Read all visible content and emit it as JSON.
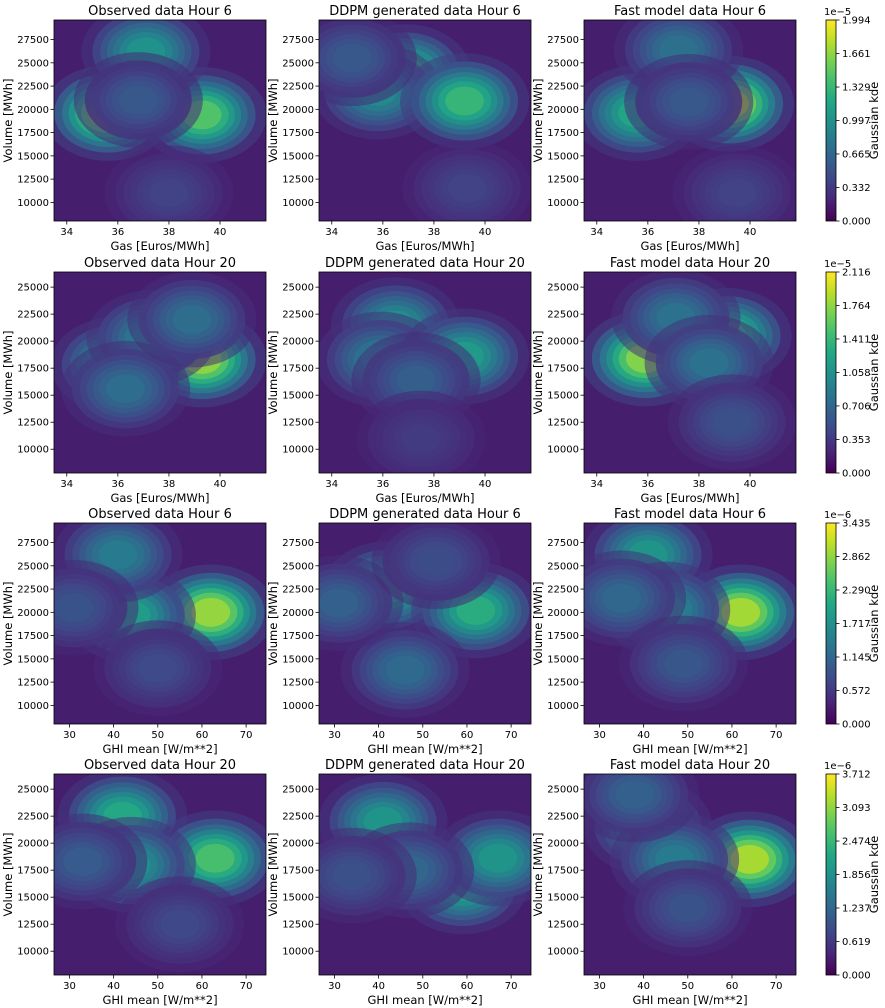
{
  "chart_data": [
    {
      "type": "heatmap",
      "rows": [
        {
          "xlabel": "Gas [Euros/MWh]",
          "ylabel": "Volume [MWh]",
          "xticks": [
            "34",
            "36",
            "38",
            "40"
          ],
          "yticks": [
            "10000",
            "12500",
            "15000",
            "17500",
            "20000",
            "22500",
            "25000",
            "27500"
          ],
          "colorbar": {
            "label": "Gaussian kde",
            "exponent": "1e−5",
            "ticks": [
              "0.000",
              "0.332",
              "0.665",
              "0.997",
              "1.329",
              "1.661",
              "1.994"
            ]
          },
          "panels": [
            {
              "title": "Observed data Hour 6",
              "peaks": [
                {
                  "x": 35.6,
                  "y": 19600,
                  "v": 1.85
                },
                {
                  "x": 39.3,
                  "y": 19400,
                  "v": 1.6
                },
                {
                  "x": 37.1,
                  "y": 26200,
                  "v": 1.05
                },
                {
                  "x": 36.8,
                  "y": 21000,
                  "v": 0.45
                },
                {
                  "x": 38.0,
                  "y": 11000,
                  "v": 0.25
                }
              ]
            },
            {
              "title": "DDPM generated data Hour 6",
              "peaks": [
                {
                  "x": 36.9,
                  "y": 24000,
                  "v": 1.35
                },
                {
                  "x": 35.8,
                  "y": 21900,
                  "v": 0.95
                },
                {
                  "x": 39.2,
                  "y": 20900,
                  "v": 1.45
                },
                {
                  "x": 34.8,
                  "y": 25500,
                  "v": 0.45
                },
                {
                  "x": 39.3,
                  "y": 11500,
                  "v": 0.25
                }
              ]
            },
            {
              "title": "Fast model data Hour 6",
              "peaks": [
                {
                  "x": 39.2,
                  "y": 20600,
                  "v": 1.99
                },
                {
                  "x": 35.6,
                  "y": 19600,
                  "v": 1.25
                },
                {
                  "x": 37.2,
                  "y": 26400,
                  "v": 0.7
                },
                {
                  "x": 37.6,
                  "y": 20800,
                  "v": 0.45
                },
                {
                  "x": 39.5,
                  "y": 11000,
                  "v": 0.25
                }
              ]
            }
          ]
        },
        {
          "xlabel": "Gas [Euros/MWh]",
          "ylabel": "Volume [MWh]",
          "xticks": [
            "34",
            "36",
            "38",
            "40"
          ],
          "yticks": [
            "10000",
            "12500",
            "15000",
            "17500",
            "20000",
            "22500",
            "25000"
          ],
          "colorbar": {
            "label": "Gaussian kde",
            "exponent": "1e−5",
            "ticks": [
              "0.000",
              "0.353",
              "0.706",
              "1.058",
              "1.411",
              "1.764",
              "2.116"
            ]
          },
          "panels": [
            {
              "title": "Observed data Hour 20",
              "peaks": [
                {
                  "x": 39.3,
                  "y": 18300,
                  "v": 2.0
                },
                {
                  "x": 35.9,
                  "y": 17800,
                  "v": 1.15
                },
                {
                  "x": 37.3,
                  "y": 20300,
                  "v": 0.9
                },
                {
                  "x": 36.3,
                  "y": 15600,
                  "v": 0.7
                },
                {
                  "x": 38.9,
                  "y": 22000,
                  "v": 0.7
                }
              ]
            },
            {
              "title": "DDPM generated data Hour 20",
              "peaks": [
                {
                  "x": 36.5,
                  "y": 21500,
                  "v": 1.05
                },
                {
                  "x": 35.9,
                  "y": 18300,
                  "v": 0.85
                },
                {
                  "x": 39.2,
                  "y": 18600,
                  "v": 1.2
                },
                {
                  "x": 37.3,
                  "y": 16400,
                  "v": 0.55
                },
                {
                  "x": 37.5,
                  "y": 11000,
                  "v": 0.2
                }
              ]
            },
            {
              "title": "Fast model data Hour 20",
              "peaks": [
                {
                  "x": 35.9,
                  "y": 18400,
                  "v": 1.95
                },
                {
                  "x": 39.1,
                  "y": 20500,
                  "v": 1.55
                },
                {
                  "x": 37.1,
                  "y": 22200,
                  "v": 0.75
                },
                {
                  "x": 38.4,
                  "y": 18000,
                  "v": 0.75
                },
                {
                  "x": 39.3,
                  "y": 12500,
                  "v": 0.4
                }
              ]
            }
          ]
        },
        {
          "xlabel": "GHI mean [W/m**2]",
          "ylabel": "Volume [MWh]",
          "xticks": [
            "30",
            "40",
            "50",
            "60",
            "70"
          ],
          "yticks": [
            "10000",
            "12500",
            "15000",
            "17500",
            "20000",
            "22500",
            "25000",
            "27500"
          ],
          "colorbar": {
            "label": "Gaussian kde",
            "exponent": "1e−6",
            "ticks": [
              "0.000",
              "0.572",
              "1.145",
              "1.717",
              "2.290",
              "2.862",
              "3.435"
            ]
          },
          "panels": [
            {
              "title": "Observed data Hour 6",
              "peaks": [
                {
                  "x": 62,
                  "y": 20000,
                  "v": 3.3
                },
                {
                  "x": 44,
                  "y": 19700,
                  "v": 2.0
                },
                {
                  "x": 41,
                  "y": 26200,
                  "v": 1.4
                },
                {
                  "x": 31,
                  "y": 20500,
                  "v": 0.7
                },
                {
                  "x": 50,
                  "y": 14000,
                  "v": 0.55
                }
              ]
            },
            {
              "title": "DDPM generated data Hour 6",
              "peaks": [
                {
                  "x": 42,
                  "y": 22500,
                  "v": 2.1
                },
                {
                  "x": 62,
                  "y": 20200,
                  "v": 2.3
                },
                {
                  "x": 46,
                  "y": 13800,
                  "v": 1.1
                },
                {
                  "x": 31,
                  "y": 21000,
                  "v": 0.9
                },
                {
                  "x": 53,
                  "y": 25500,
                  "v": 0.6
                }
              ]
            },
            {
              "title": "Fast model data Hour 6",
              "peaks": [
                {
                  "x": 62,
                  "y": 20000,
                  "v": 3.4
                },
                {
                  "x": 41,
                  "y": 26200,
                  "v": 1.85
                },
                {
                  "x": 45,
                  "y": 20300,
                  "v": 1.65
                },
                {
                  "x": 35,
                  "y": 21500,
                  "v": 1.05
                },
                {
                  "x": 49,
                  "y": 14500,
                  "v": 0.75
                }
              ]
            }
          ]
        },
        {
          "xlabel": "GHI mean [W/m**2]",
          "ylabel": "Volume [MWh]",
          "xticks": [
            "30",
            "40",
            "50",
            "60",
            "70"
          ],
          "yticks": [
            "10000",
            "12500",
            "15000",
            "17500",
            "20000",
            "22500",
            "25000"
          ],
          "colorbar": {
            "label": "Gaussian kde",
            "exponent": "1e−6",
            "ticks": [
              "0.000",
              "0.619",
              "1.237",
              "1.856",
              "2.474",
              "3.093",
              "3.712"
            ]
          },
          "panels": [
            {
              "title": "Observed data Hour 20",
              "peaks": [
                {
                  "x": 42,
                  "y": 22500,
                  "v": 2.4
                },
                {
                  "x": 63,
                  "y": 18600,
                  "v": 2.9
                },
                {
                  "x": 44,
                  "y": 18000,
                  "v": 1.9
                },
                {
                  "x": 33,
                  "y": 18300,
                  "v": 0.9
                },
                {
                  "x": 55,
                  "y": 12500,
                  "v": 0.55
                }
              ]
            },
            {
              "title": "DDPM generated data Hour 20",
              "peaks": [
                {
                  "x": 41,
                  "y": 22000,
                  "v": 2.0
                },
                {
                  "x": 59,
                  "y": 16000,
                  "v": 2.2
                },
                {
                  "x": 67,
                  "y": 18600,
                  "v": 2.0
                },
                {
                  "x": 47,
                  "y": 17500,
                  "v": 1.1
                },
                {
                  "x": 34,
                  "y": 17000,
                  "v": 0.7
                }
              ]
            },
            {
              "title": "Fast model data Hour 20",
              "peaks": [
                {
                  "x": 64,
                  "y": 18500,
                  "v": 3.7
                },
                {
                  "x": 41,
                  "y": 21500,
                  "v": 1.5
                },
                {
                  "x": 47,
                  "y": 18500,
                  "v": 1.5
                },
                {
                  "x": 38,
                  "y": 24500,
                  "v": 1.0
                },
                {
                  "x": 50,
                  "y": 14000,
                  "v": 0.75
                }
              ]
            }
          ]
        }
      ]
    }
  ]
}
